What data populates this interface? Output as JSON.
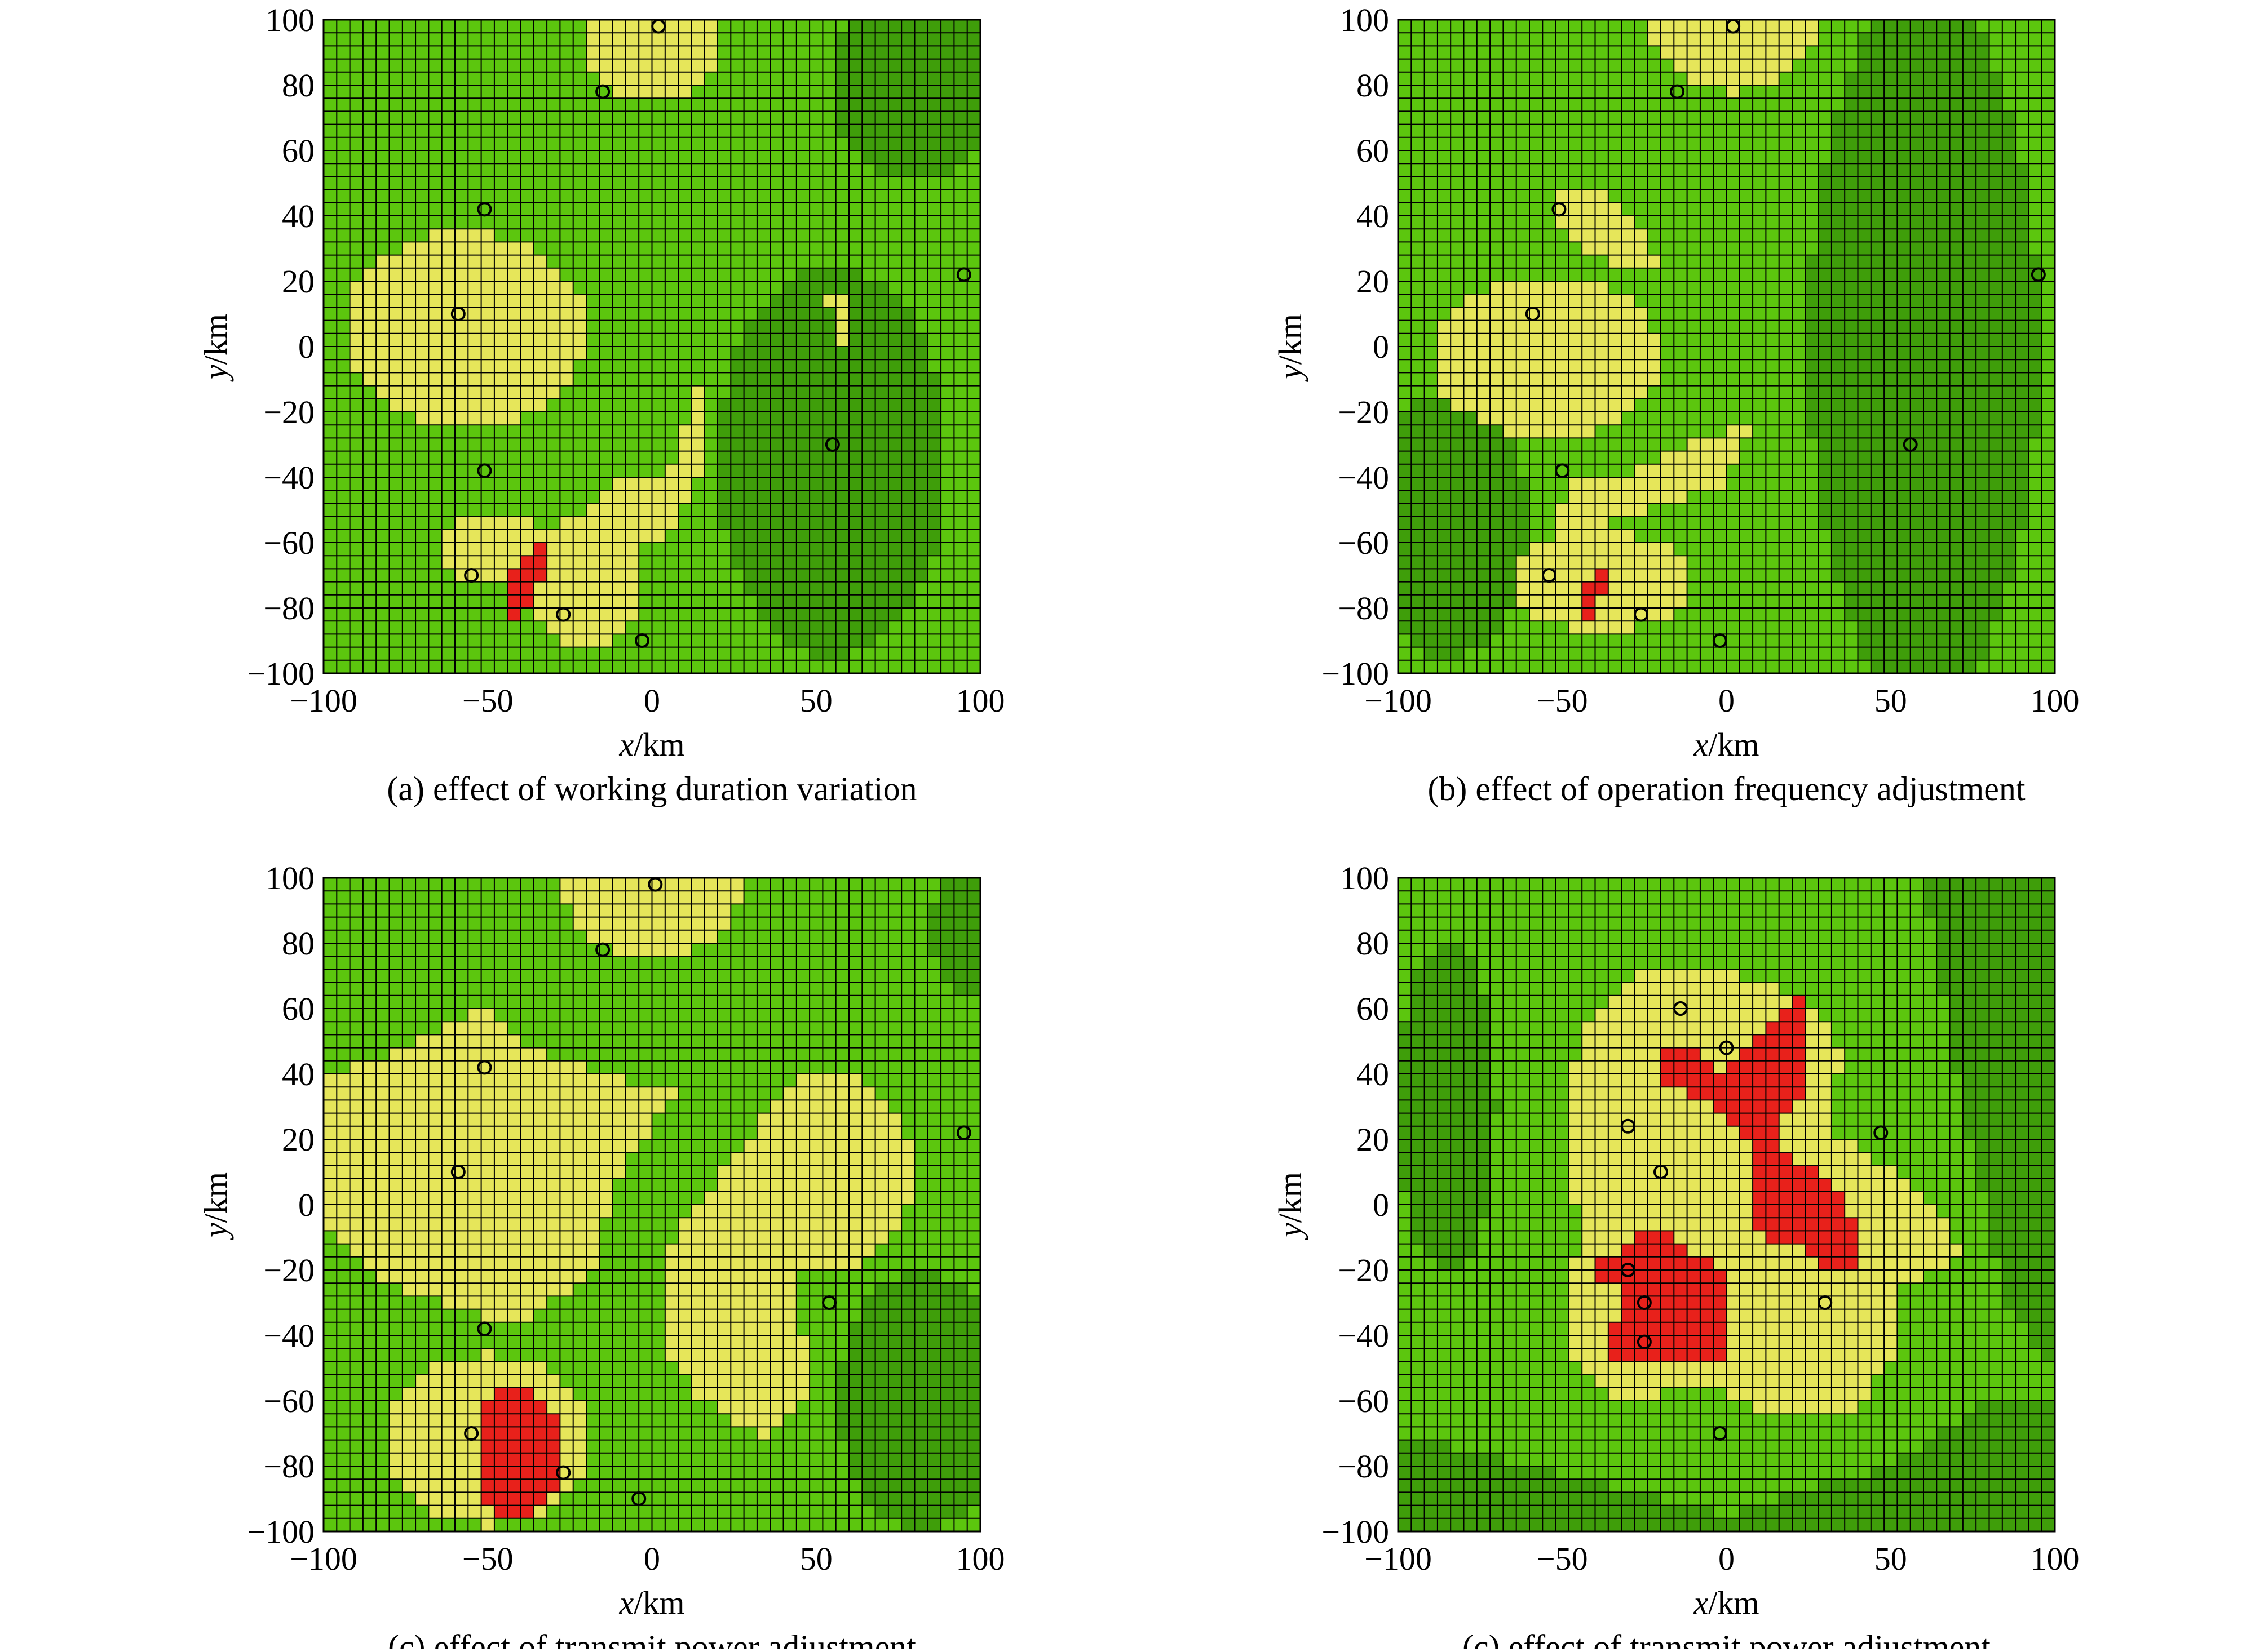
{
  "colors": {
    "background_green": "#5cc60e",
    "dark_green": "#3f9e0a",
    "yellow": "#e6e65a",
    "red": "#e8211b",
    "grid_line": "#000000",
    "marker": "#000000"
  },
  "chart_data": [
    {
      "type": "heatmap",
      "caption": "(a) effect of working duration variation",
      "xlabel_var": "x",
      "xlabel_unit": "/km",
      "ylabel_var": "y",
      "ylabel_unit": "/km",
      "xlim": [
        -100,
        100
      ],
      "ylim": [
        -100,
        100
      ],
      "xticks": [
        "−100",
        "−50",
        "0",
        "50",
        "100"
      ],
      "yticks": [
        "100",
        "80",
        "60",
        "40",
        "20",
        "0",
        "−20",
        "−40",
        "−60",
        "−80",
        "−100"
      ],
      "grid": true,
      "grid_cells": [
        50,
        50
      ],
      "dark_regions": [
        {
          "type": "ellipse",
          "cx": 55,
          "cy": -35,
          "rx": 35,
          "ry": 60
        },
        {
          "type": "ellipse",
          "cx": 80,
          "cy": 80,
          "rx": 25,
          "ry": 30
        }
      ],
      "yellow_regions": [
        {
          "type": "ellipse",
          "cx": 0,
          "cy": 100,
          "rx": 22,
          "ry": 25
        },
        {
          "type": "ellipse",
          "cx": -57,
          "cy": 5,
          "rx": 37,
          "ry": 30
        },
        {
          "type": "ellipse",
          "cx": -47,
          "cy": -62,
          "rx": 17,
          "ry": 12
        },
        {
          "type": "ellipse",
          "cx": -20,
          "cy": -72,
          "rx": 18,
          "ry": 20
        },
        {
          "type": "ellipse",
          "cx": -5,
          "cy": -50,
          "rx": 14,
          "ry": 10
        },
        {
          "type": "polygon",
          "points": [
            [
              14,
              -12
            ],
            [
              18,
              -32
            ],
            [
              8,
              -50
            ],
            [
              4,
              -40
            ]
          ]
        },
        {
          "type": "polygon",
          "points": [
            [
              53,
              16
            ],
            [
              60,
              16
            ],
            [
              60,
              8
            ],
            [
              58,
              0
            ],
            [
              55,
              8
            ]
          ]
        }
      ],
      "red_regions": [
        {
          "type": "polygon",
          "points": [
            [
              -44,
              -86
            ],
            [
              -38,
              -82
            ],
            [
              -33,
              -72
            ],
            [
              -33,
              -60
            ],
            [
              -36,
              -60
            ],
            [
              -44,
              -70
            ]
          ]
        }
      ],
      "markers": [
        [
          2,
          98
        ],
        [
          -15,
          78
        ],
        [
          -51,
          42
        ],
        [
          -59,
          10
        ],
        [
          95,
          22
        ],
        [
          55,
          -30
        ],
        [
          -51,
          -38
        ],
        [
          -55,
          -70
        ],
        [
          -27,
          -82
        ],
        [
          -3,
          -90
        ]
      ]
    },
    {
      "type": "heatmap",
      "caption": "(b) effect of operation frequency adjustment",
      "xlabel_var": "x",
      "xlabel_unit": "/km",
      "ylabel_var": "y",
      "ylabel_unit": "/km",
      "xlim": [
        -100,
        100
      ],
      "ylim": [
        -100,
        100
      ],
      "xticks": [
        "−100",
        "−50",
        "0",
        "50",
        "100"
      ],
      "yticks": [
        "100",
        "80",
        "60",
        "40",
        "20",
        "0",
        "−20",
        "−40",
        "−60",
        "−80",
        "−100"
      ],
      "grid": true,
      "grid_cells": [
        50,
        50
      ],
      "dark_regions": [
        {
          "type": "ellipse",
          "cx": 60,
          "cy": 0,
          "rx": 35,
          "ry": 110
        },
        {
          "type": "ellipse",
          "cx": -85,
          "cy": -55,
          "rx": 25,
          "ry": 40
        }
      ],
      "yellow_regions": [
        {
          "type": "ellipse",
          "cx": 2,
          "cy": 100,
          "rx": 25,
          "ry": 22
        },
        {
          "type": "polygon",
          "points": [
            [
              -50,
              50
            ],
            [
              -36,
              46
            ],
            [
              -28,
              38
            ],
            [
              -20,
              24
            ],
            [
              -30,
              22
            ],
            [
              -42,
              30
            ],
            [
              -50,
              38
            ]
          ]
        },
        {
          "type": "ellipse",
          "cx": -55,
          "cy": -3,
          "rx": 35,
          "ry": 25
        },
        {
          "type": "polygon",
          "points": [
            [
              -51,
              -40
            ],
            [
              -36,
              -42
            ],
            [
              -20,
              -35
            ],
            [
              -10,
              -28
            ],
            [
              8,
              -24
            ],
            [
              0,
              -42
            ],
            [
              -22,
              -50
            ],
            [
              -40,
              -55
            ]
          ]
        },
        {
          "type": "polygon",
          "points": [
            [
              -50,
              -48
            ],
            [
              -40,
              -52
            ],
            [
              -38,
              -60
            ],
            [
              -50,
              -62
            ]
          ]
        },
        {
          "type": "ellipse",
          "cx": -38,
          "cy": -72,
          "rx": 28,
          "ry": 15
        }
      ],
      "red_regions": [
        {
          "type": "polygon",
          "points": [
            [
              -45,
              -84
            ],
            [
              -42,
              -84
            ],
            [
              -34,
              -72
            ],
            [
              -34,
              -65
            ],
            [
              -40,
              -68
            ],
            [
              -45,
              -76
            ]
          ]
        }
      ],
      "markers": [
        [
          2,
          98
        ],
        [
          -15,
          78
        ],
        [
          -51,
          42
        ],
        [
          -59,
          10
        ],
        [
          95,
          22
        ],
        [
          56,
          -30
        ],
        [
          -50,
          -38
        ],
        [
          -54,
          -70
        ],
        [
          -26,
          -82
        ],
        [
          -2,
          -90
        ]
      ]
    },
    {
      "type": "heatmap",
      "caption": "(c) effect of transmit power adjustment",
      "xlabel_var": "x",
      "xlabel_unit": "/km",
      "ylabel_var": "y",
      "ylabel_unit": "/km",
      "xlim": [
        -100,
        100
      ],
      "ylim": [
        -100,
        100
      ],
      "xticks": [
        "−100",
        "−50",
        "0",
        "50",
        "100"
      ],
      "yticks": [
        "100",
        "80",
        "60",
        "40",
        "20",
        "0",
        "−20",
        "−40",
        "−60",
        "−80",
        "−100"
      ],
      "grid": true,
      "grid_cells": [
        50,
        50
      ],
      "dark_regions": [
        {
          "type": "ellipse",
          "cx": 82,
          "cy": -60,
          "rx": 25,
          "ry": 40
        },
        {
          "type": "ellipse",
          "cx": 95,
          "cy": 85,
          "rx": 10,
          "ry": 20
        }
      ],
      "yellow_regions": [
        {
          "type": "ellipse",
          "cx": 0,
          "cy": 100,
          "rx": 28,
          "ry": 25
        },
        {
          "type": "polygon",
          "points": [
            [
              -100,
              40
            ],
            [
              -75,
              48
            ],
            [
              -52,
              60
            ],
            [
              -40,
              50
            ],
            [
              -20,
              42
            ],
            [
              7,
              34
            ],
            [
              0,
              24
            ],
            [
              -10,
              8
            ],
            [
              -18,
              -20
            ],
            [
              -40,
              -38
            ],
            [
              -60,
              -32
            ],
            [
              -85,
              -22
            ],
            [
              -100,
              -8
            ]
          ]
        },
        {
          "type": "ellipse",
          "cx": -50,
          "cy": -72,
          "rx": 32,
          "ry": 26
        },
        {
          "type": "polygon",
          "points": [
            [
              3,
              -15
            ],
            [
              10,
              -5
            ],
            [
              20,
              8
            ],
            [
              25,
              15
            ],
            [
              38,
              20
            ],
            [
              32,
              -5
            ],
            [
              44,
              -20
            ],
            [
              48,
              -60
            ],
            [
              35,
              -72
            ],
            [
              15,
              -60
            ],
            [
              3,
              -45
            ]
          ]
        },
        {
          "type": "ellipse",
          "cx": 54,
          "cy": 10,
          "rx": 25,
          "ry": 30
        }
      ],
      "red_regions": [
        {
          "type": "ellipse",
          "cx": -41,
          "cy": -76,
          "rx": 13,
          "ry": 20
        }
      ],
      "markers": [
        [
          1,
          98
        ],
        [
          -15,
          78
        ],
        [
          -51,
          42
        ],
        [
          -59,
          10
        ],
        [
          95,
          22
        ],
        [
          54,
          -30
        ],
        [
          -51,
          -38
        ],
        [
          -55,
          -70
        ],
        [
          -27,
          -82
        ],
        [
          -4,
          -90
        ]
      ]
    },
    {
      "type": "heatmap",
      "caption": "(c) effect of transmit power adjustment",
      "xlabel_var": "x",
      "xlabel_unit": "/km",
      "ylabel_var": "y",
      "ylabel_unit": "/km",
      "xlim": [
        -100,
        100
      ],
      "ylim": [
        -100,
        100
      ],
      "xticks": [
        "−100",
        "−50",
        "0",
        "50",
        "100"
      ],
      "yticks": [
        "100",
        "80",
        "60",
        "40",
        "20",
        "0",
        "−20",
        "−40",
        "−60",
        "−80",
        "−100"
      ],
      "grid": true,
      "grid_cells": [
        50,
        50
      ],
      "dark_regions": [
        {
          "type": "polygon",
          "points": [
            [
              -100,
              -100
            ],
            [
              100,
              -100
            ],
            [
              100,
              -60
            ],
            [
              80,
              -60
            ],
            [
              50,
              -80
            ],
            [
              0,
              -95
            ],
            [
              -60,
              -80
            ],
            [
              -100,
              -70
            ]
          ]
        },
        {
          "type": "polygon",
          "points": [
            [
              60,
              100
            ],
            [
              100,
              100
            ],
            [
              100,
              -50
            ],
            [
              85,
              -30
            ],
            [
              70,
              40
            ]
          ]
        },
        {
          "type": "ellipse",
          "cx": -85,
          "cy": 30,
          "rx": 15,
          "ry": 50
        }
      ],
      "yellow_regions": [
        {
          "type": "polygon",
          "points": [
            [
              -40,
              60
            ],
            [
              -28,
              70
            ],
            [
              0,
              72
            ],
            [
              22,
              64
            ],
            [
              35,
              48
            ],
            [
              32,
              22
            ],
            [
              45,
              14
            ],
            [
              58,
              5
            ],
            [
              74,
              -15
            ],
            [
              52,
              -25
            ],
            [
              50,
              -48
            ],
            [
              40,
              -62
            ],
            [
              20,
              -66
            ],
            [
              4,
              -60
            ],
            [
              -10,
              -55
            ],
            [
              -30,
              -62
            ],
            [
              -45,
              -50
            ],
            [
              -50,
              -35
            ],
            [
              -45,
              -10
            ],
            [
              -48,
              20
            ],
            [
              -46,
              44
            ]
          ]
        }
      ],
      "red_regions": [
        {
          "type": "polygon",
          "points": [
            [
              -20,
              48
            ],
            [
              -8,
              48
            ],
            [
              0,
              40
            ],
            [
              8,
              48
            ],
            [
              16,
              56
            ],
            [
              20,
              64
            ],
            [
              24,
              64
            ],
            [
              24,
              36
            ],
            [
              18,
              26
            ],
            [
              16,
              16
            ],
            [
              24,
              12
            ],
            [
              36,
              4
            ],
            [
              40,
              -8
            ],
            [
              40,
              -20
            ],
            [
              30,
              -20
            ],
            [
              26,
              -15
            ],
            [
              16,
              -12
            ],
            [
              8,
              -5
            ],
            [
              6,
              5
            ],
            [
              10,
              20
            ],
            [
              2,
              24
            ],
            [
              -4,
              32
            ],
            [
              -20,
              36
            ]
          ]
        },
        {
          "type": "polygon",
          "points": [
            [
              -40,
              -17
            ],
            [
              -34,
              -15
            ],
            [
              -28,
              -8
            ],
            [
              -18,
              -8
            ],
            [
              -10,
              -15
            ],
            [
              -2,
              -20
            ],
            [
              0,
              -30
            ],
            [
              0,
              -48
            ],
            [
              -8,
              -48
            ],
            [
              -12,
              -52
            ],
            [
              -14,
              -48
            ],
            [
              -22,
              -48
            ],
            [
              -36,
              -48
            ],
            [
              -36,
              -40
            ],
            [
              -32,
              -35
            ],
            [
              -30,
              -26
            ],
            [
              -36,
              -22
            ],
            [
              -40,
              -22
            ]
          ]
        }
      ],
      "markers": [
        [
          -14,
          60
        ],
        [
          0,
          48
        ],
        [
          -30,
          24
        ],
        [
          47,
          22
        ],
        [
          -20,
          10
        ],
        [
          -30,
          -20
        ],
        [
          30,
          -30
        ],
        [
          -25,
          -30
        ],
        [
          -25,
          -42
        ],
        [
          -2,
          -70
        ]
      ]
    }
  ]
}
